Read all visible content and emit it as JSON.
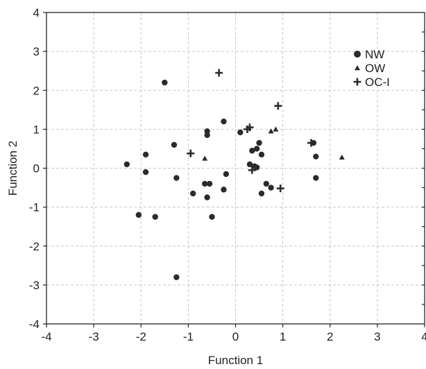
{
  "chart_data": {
    "type": "scatter",
    "title": "",
    "xlabel": "Function 1",
    "ylabel": "Function 2",
    "xlim": [
      -4,
      4
    ],
    "ylim": [
      -4,
      4
    ],
    "xticks": [
      "-4",
      "-3",
      "-2",
      "-1",
      "0",
      "1",
      "2",
      "3",
      "4"
    ],
    "yticks": [
      "4",
      "3",
      "2",
      "1",
      "0",
      "-1",
      "-2",
      "-3",
      "-4"
    ],
    "grid": true,
    "legend_position": "top-right",
    "series": [
      {
        "name": "NW",
        "marker": "circle",
        "color": "#2b2b2b",
        "points": [
          [
            -1.5,
            2.2
          ],
          [
            -0.25,
            1.2
          ],
          [
            -1.3,
            0.6
          ],
          [
            -0.6,
            0.95
          ],
          [
            -0.6,
            0.85
          ],
          [
            0.1,
            0.92
          ],
          [
            0.5,
            0.65
          ],
          [
            0.35,
            0.45
          ],
          [
            0.45,
            0.5
          ],
          [
            0.3,
            0.1
          ],
          [
            0.4,
            0.05
          ],
          [
            0.45,
            0.02
          ],
          [
            0.55,
            0.35
          ],
          [
            -1.9,
            0.35
          ],
          [
            -2.3,
            0.1
          ],
          [
            -1.9,
            -0.1
          ],
          [
            -1.25,
            -0.25
          ],
          [
            -0.65,
            -0.4
          ],
          [
            -0.55,
            -0.4
          ],
          [
            -0.2,
            -0.15
          ],
          [
            -0.25,
            -0.55
          ],
          [
            -0.9,
            -0.65
          ],
          [
            -0.6,
            -0.75
          ],
          [
            -0.5,
            -1.25
          ],
          [
            -1.7,
            -1.25
          ],
          [
            -2.05,
            -1.2
          ],
          [
            0.65,
            -0.4
          ],
          [
            0.75,
            -0.5
          ],
          [
            0.55,
            -0.65
          ],
          [
            1.65,
            0.65
          ],
          [
            1.7,
            0.3
          ],
          [
            1.7,
            -0.25
          ],
          [
            -1.25,
            -2.8
          ]
        ]
      },
      {
        "name": "OW",
        "marker": "triangle",
        "color": "#2b2b2b",
        "points": [
          [
            -0.65,
            0.25
          ],
          [
            0.75,
            0.95
          ],
          [
            0.85,
            1.0
          ],
          [
            2.25,
            0.28
          ]
        ]
      },
      {
        "name": "OC-I",
        "marker": "plus",
        "color": "#2b2b2b",
        "points": [
          [
            -0.35,
            2.45
          ],
          [
            0.9,
            1.6
          ],
          [
            0.25,
            1.0
          ],
          [
            0.3,
            1.05
          ],
          [
            -0.95,
            0.38
          ],
          [
            1.6,
            0.65
          ],
          [
            0.35,
            -0.05
          ],
          [
            0.95,
            -0.52
          ]
        ]
      }
    ]
  }
}
